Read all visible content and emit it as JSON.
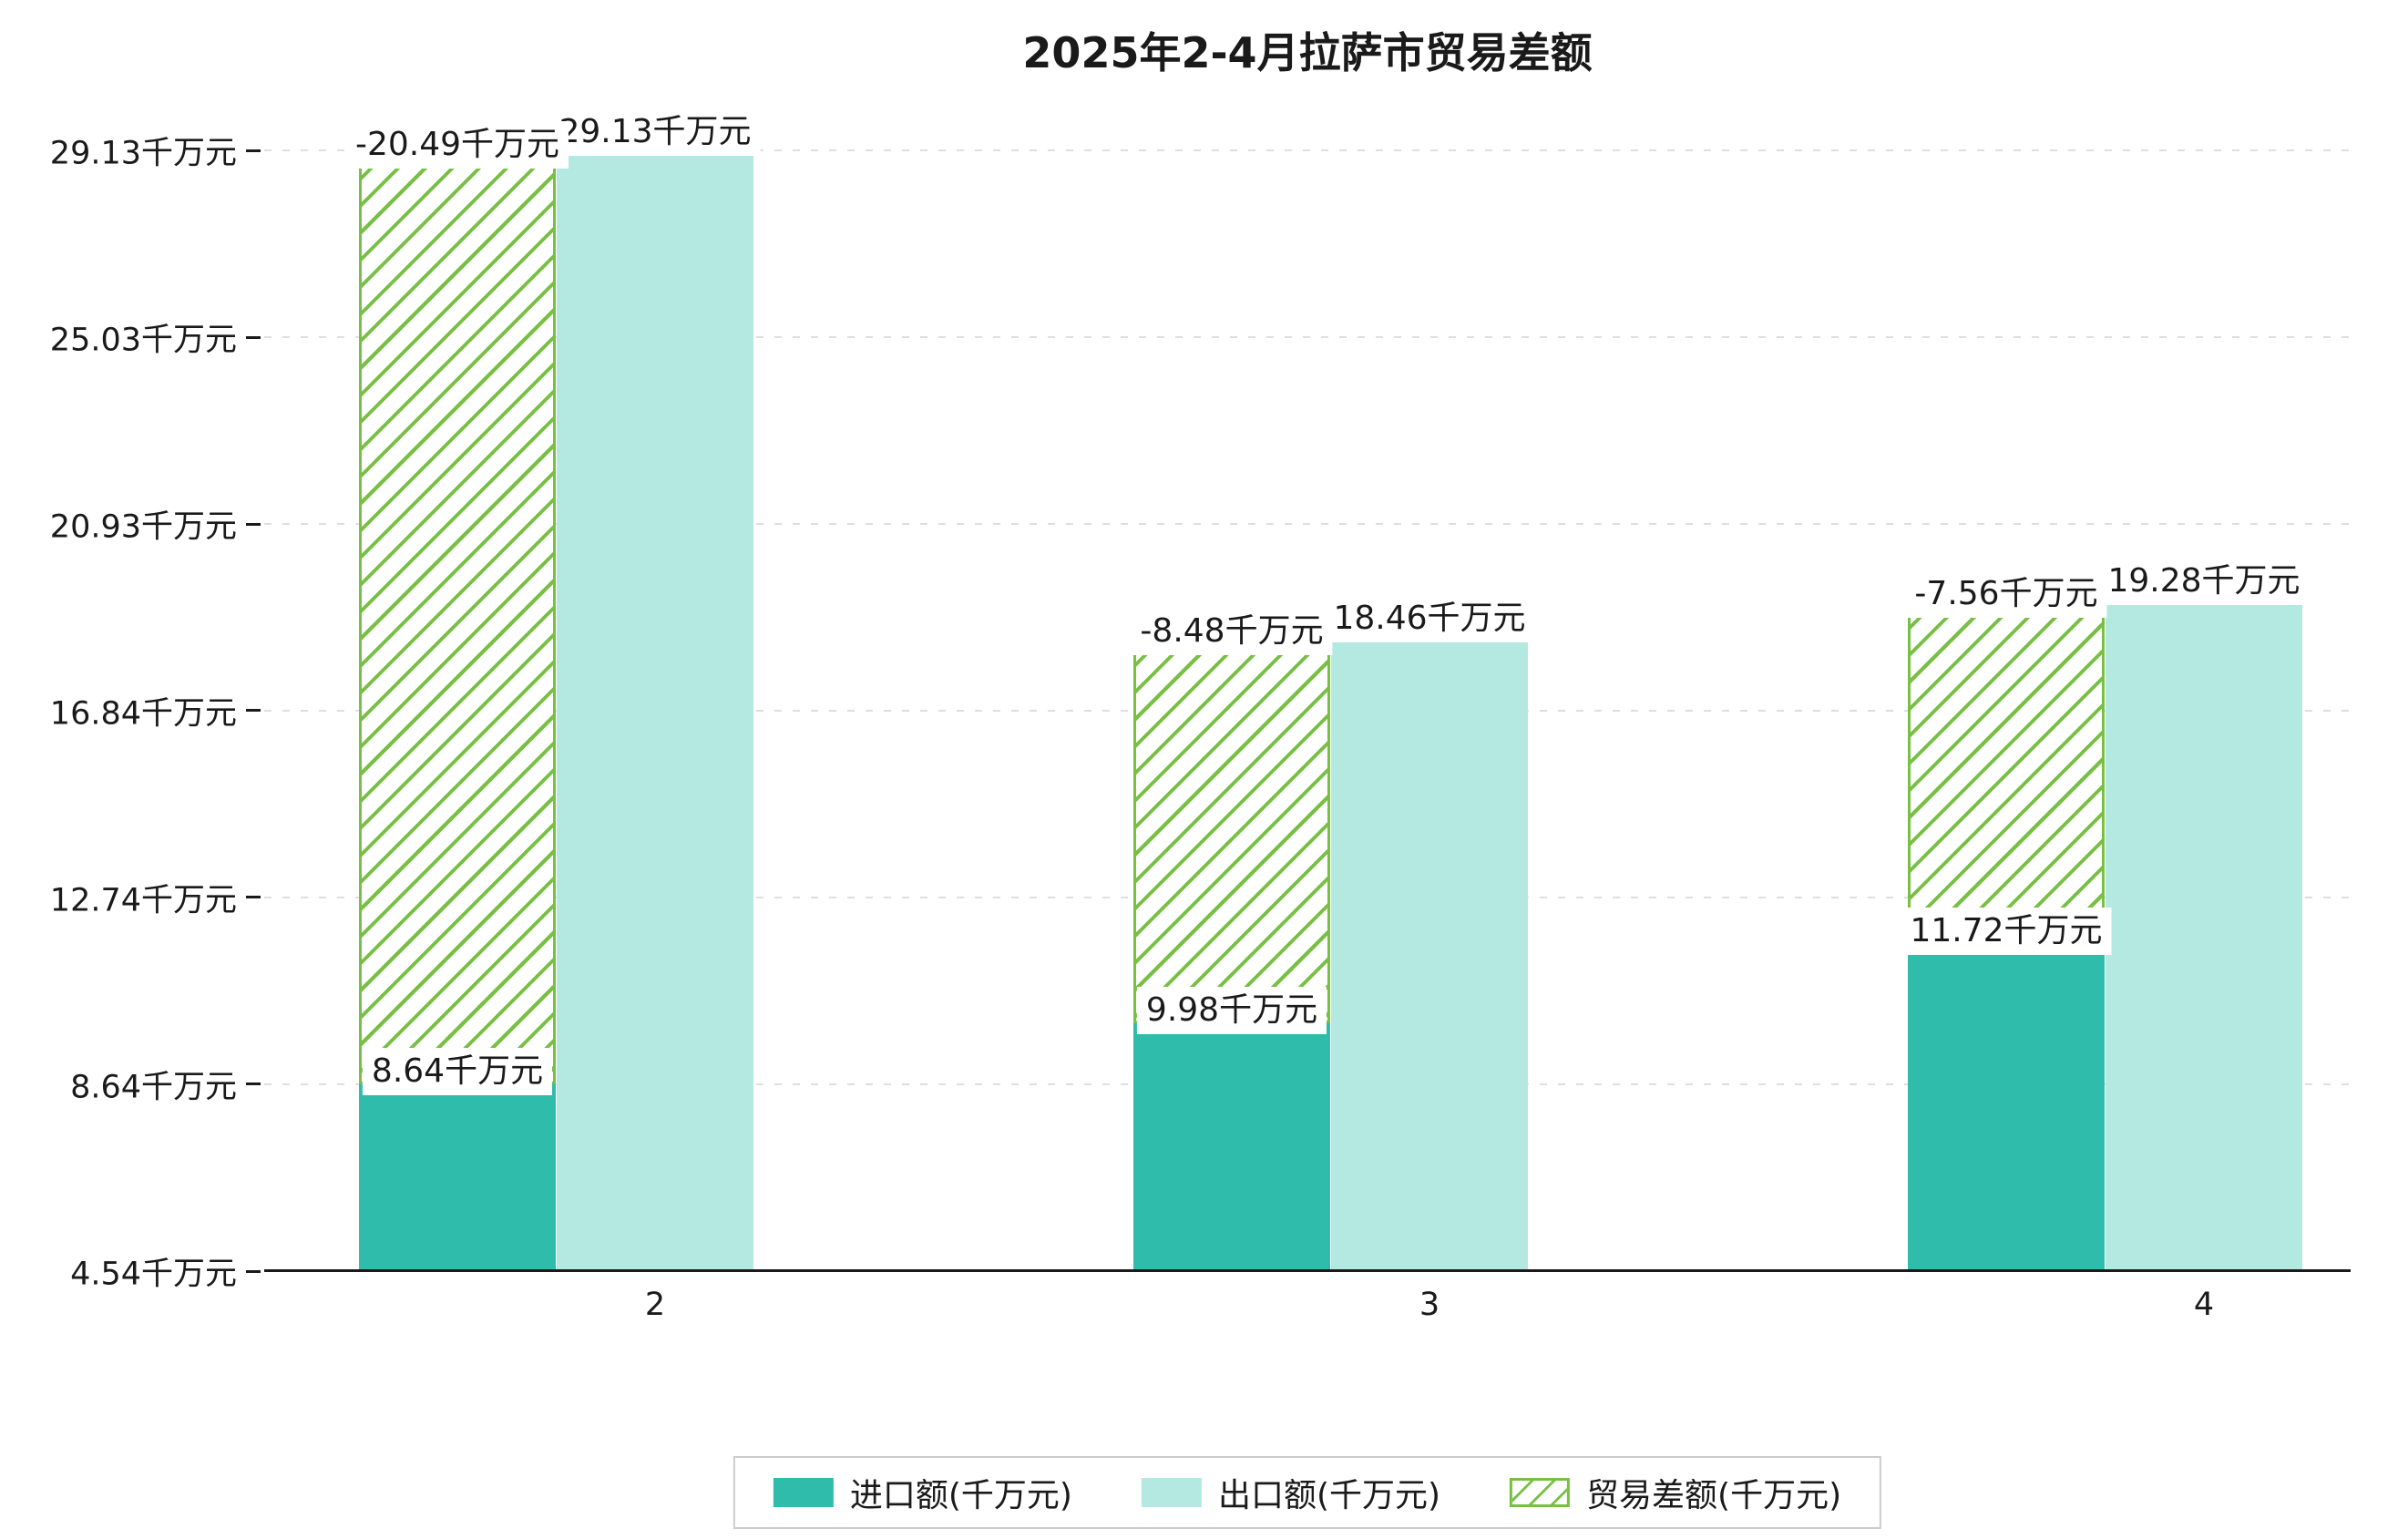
{
  "title": "2025年2-4月拉萨市贸易差额",
  "chart_data": {
    "type": "bar",
    "categories": [
      "2",
      "3",
      "4"
    ],
    "series": [
      {
        "name": "进口额(千万元)",
        "values": [
          8.64,
          9.98,
          11.72
        ]
      },
      {
        "name": "出口额(千万元)",
        "values": [
          29.13,
          18.46,
          19.28
        ]
      },
      {
        "name": "贸易差额(千万元)",
        "values": [
          -20.49,
          -8.48,
          -7.56
        ]
      }
    ],
    "bar_labels": {
      "import": [
        "8.64千万元",
        "9.98千万元",
        "11.72千万元"
      ],
      "export": [
        "29.13千万元",
        "18.46千万元",
        "19.28千万元"
      ],
      "balance": [
        "-20.49千万元",
        "-8.48千万元",
        "-7.56千万元"
      ]
    },
    "y_ticks": [
      {
        "value": 29.13,
        "label": "29.13千万元"
      },
      {
        "value": 25.03,
        "label": "25.03千万元"
      },
      {
        "value": 20.93,
        "label": "20.93千万元"
      },
      {
        "value": 16.84,
        "label": "16.84千万元"
      },
      {
        "value": 12.74,
        "label": "12.74千万元"
      },
      {
        "value": 8.64,
        "label": "8.64千万元"
      },
      {
        "value": 4.54,
        "label": "4.54千万元"
      }
    ],
    "ylim": [
      4.54,
      29.13
    ],
    "grid": true,
    "legend_position": "bottom",
    "colors": {
      "import": "#2fbcab",
      "export": "#b4e9e2",
      "balance": "#77c043"
    }
  },
  "legend": {
    "items": [
      {
        "label": "进口额(千万元)",
        "swatch": "import"
      },
      {
        "label": "出口额(千万元)",
        "swatch": "export"
      },
      {
        "label": "贸易差额(千万元)",
        "swatch": "balance-hatched"
      }
    ]
  }
}
